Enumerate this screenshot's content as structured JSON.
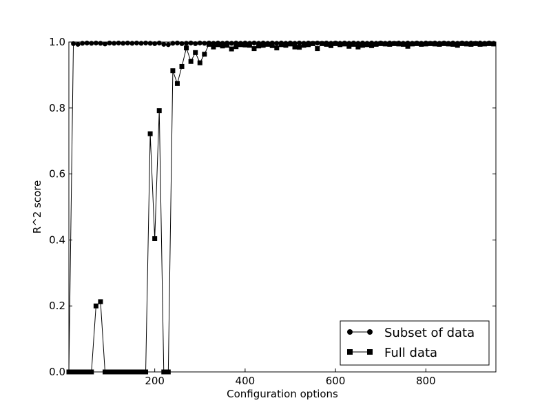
{
  "chart_data": {
    "type": "line",
    "title": "",
    "xlabel": "Configuration options",
    "ylabel": "R^2 score",
    "xlim": [
      10,
      955
    ],
    "ylim": [
      0.0,
      1.0
    ],
    "x_ticks": [
      200,
      400,
      600,
      800
    ],
    "y_ticks": [
      0.0,
      0.2,
      0.4,
      0.6,
      0.8,
      1.0
    ],
    "x_tick_labels": [
      "200",
      "400",
      "600",
      "800"
    ],
    "y_tick_labels": [
      "0.0",
      "0.2",
      "0.4",
      "0.6",
      "0.8",
      "1.0"
    ],
    "grid": false,
    "legend_position": "lower-right",
    "x": [
      10,
      20,
      30,
      40,
      50,
      60,
      70,
      80,
      90,
      100,
      110,
      120,
      130,
      140,
      150,
      160,
      170,
      180,
      190,
      200,
      210,
      220,
      230,
      240,
      250,
      260,
      270,
      280,
      290,
      300,
      310,
      320,
      330,
      340,
      350,
      360,
      370,
      380,
      390,
      400,
      410,
      420,
      430,
      440,
      450,
      460,
      470,
      480,
      490,
      500,
      510,
      520,
      530,
      540,
      550,
      560,
      570,
      580,
      590,
      600,
      610,
      620,
      630,
      640,
      650,
      660,
      670,
      680,
      690,
      700,
      710,
      720,
      730,
      740,
      750,
      760,
      770,
      780,
      790,
      800,
      810,
      820,
      830,
      840,
      850,
      860,
      870,
      880,
      890,
      900,
      910,
      920,
      930,
      940,
      950
    ],
    "series": [
      {
        "name": "Subset of data",
        "marker": "circle",
        "values": [
          0.0,
          0.995,
          0.993,
          0.996,
          0.997,
          0.996,
          0.997,
          0.996,
          0.994,
          0.997,
          0.996,
          0.997,
          0.996,
          0.997,
          0.996,
          0.997,
          0.996,
          0.997,
          0.996,
          0.995,
          0.997,
          0.993,
          0.992,
          0.996,
          0.997,
          0.995,
          0.996,
          0.997,
          0.995,
          0.997,
          0.996,
          0.997,
          0.996,
          0.997,
          0.996,
          0.997,
          0.996,
          0.997,
          0.996,
          0.997,
          0.996,
          0.997,
          0.996,
          0.997,
          0.996,
          0.997,
          0.996,
          0.997,
          0.996,
          0.997,
          0.996,
          0.997,
          0.996,
          0.997,
          0.996,
          0.997,
          0.996,
          0.997,
          0.996,
          0.997,
          0.996,
          0.997,
          0.996,
          0.997,
          0.996,
          0.997,
          0.996,
          0.997,
          0.996,
          0.997,
          0.996,
          0.997,
          0.996,
          0.997,
          0.996,
          0.997,
          0.996,
          0.997,
          0.996,
          0.997,
          0.996,
          0.997,
          0.996,
          0.997,
          0.996,
          0.997,
          0.996,
          0.997,
          0.996,
          0.997,
          0.996,
          0.997,
          0.996,
          0.997,
          0.996
        ]
      },
      {
        "name": "Full data",
        "marker": "square",
        "values": [
          0.0,
          0.0,
          0.0,
          0.0,
          0.0,
          0.0,
          0.2,
          0.213,
          0.0,
          0.0,
          0.0,
          0.0,
          0.0,
          0.0,
          0.0,
          0.0,
          0.0,
          0.0,
          0.722,
          0.404,
          0.792,
          0.0,
          0.0,
          0.913,
          0.874,
          0.926,
          0.982,
          0.941,
          0.968,
          0.937,
          0.963,
          0.993,
          0.985,
          0.992,
          0.988,
          0.99,
          0.979,
          0.986,
          0.992,
          0.991,
          0.99,
          0.98,
          0.988,
          0.99,
          0.993,
          0.989,
          0.982,
          0.992,
          0.99,
          0.994,
          0.985,
          0.984,
          0.99,
          0.992,
          0.995,
          0.98,
          0.995,
          0.993,
          0.989,
          0.995,
          0.992,
          0.994,
          0.987,
          0.993,
          0.985,
          0.99,
          0.992,
          0.989,
          0.993,
          0.995,
          0.994,
          0.993,
          0.995,
          0.994,
          0.993,
          0.987,
          0.994,
          0.995,
          0.993,
          0.994,
          0.995,
          0.994,
          0.993,
          0.995,
          0.994,
          0.993,
          0.99,
          0.995,
          0.994,
          0.993,
          0.995,
          0.993,
          0.994,
          0.995,
          0.994
        ]
      }
    ]
  }
}
